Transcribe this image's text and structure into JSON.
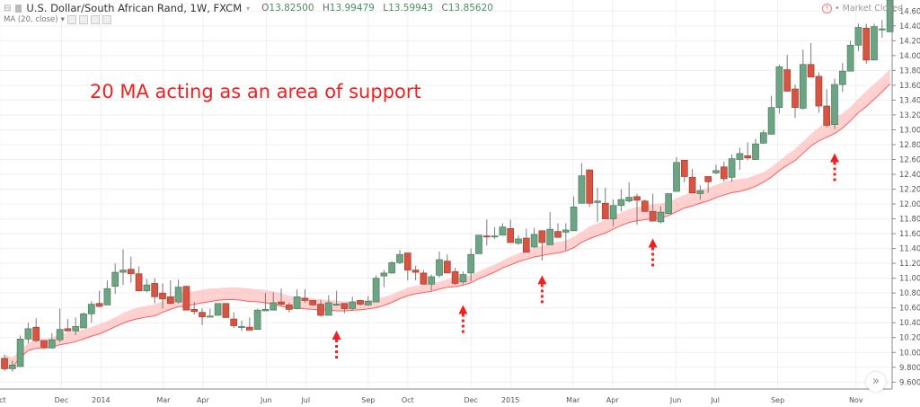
{
  "header": {
    "symbol_title": "U.S. Dollar/South African Rand, 1W, FXCM",
    "ohlc": {
      "o_label": "O",
      "o": "13.82500",
      "h_label": "H",
      "h": "13.99479",
      "l_label": "L",
      "l": "13.59943",
      "c_label": "C",
      "c": "13.85620"
    },
    "indicator": "MA (20, close)",
    "market_status": "Market Closed"
  },
  "annotation_text": "20 MA acting as an area of support",
  "colors": {
    "up": "#6ba583",
    "down": "#d75442",
    "ma_line": "#ff5a5a",
    "ma_band": "#ffb3b3",
    "annotation": "#f02020",
    "grid": "#efefef"
  },
  "chart_data": {
    "type": "candlestick",
    "title": "U.S. Dollar/South African Rand, 1W, FXCM",
    "interval": "1W",
    "indicator": {
      "type": "SMA",
      "period": 20,
      "source": "close"
    },
    "ylim": [
      9.5,
      14.75
    ],
    "y_ticks": [
      "14.60000",
      "14.40000",
      "14.20000",
      "14.00000",
      "13.80000",
      "13.60000",
      "13.40000",
      "13.20000",
      "13.00000",
      "12.80000",
      "12.60000",
      "12.40000",
      "12.20000",
      "12.00000",
      "11.80000",
      "11.60000",
      "11.40000",
      "11.20000",
      "11.00000",
      "10.80000",
      "10.60000",
      "10.40000",
      "10.20000",
      "10.00000",
      "9.80000",
      "9.60000"
    ],
    "x_ticks": [
      {
        "label": "Oct",
        "at": -0.6
      },
      {
        "label": "Dec",
        "at": 7.2
      },
      {
        "label": "2014",
        "at": 12.2
      },
      {
        "label": "Mar",
        "at": 20.1
      },
      {
        "label": "Apr",
        "at": 25.1
      },
      {
        "label": "Jun",
        "at": 33.1
      },
      {
        "label": "Jul",
        "at": 38.1
      },
      {
        "label": "Sep",
        "at": 46
      },
      {
        "label": "Oct",
        "at": 51
      },
      {
        "label": "Dec",
        "at": 59
      },
      {
        "label": "2015",
        "at": 64
      },
      {
        "label": "Mar",
        "at": 71.9
      },
      {
        "label": "Apr",
        "at": 76.9
      },
      {
        "label": "Jun",
        "at": 84.9
      },
      {
        "label": "Jul",
        "at": 89.9
      },
      {
        "label": "Sep",
        "at": 97.8
      },
      {
        "label": "Nov",
        "at": 107.7
      }
    ],
    "grid": true,
    "support_arrows_at_candle": [
      42,
      58,
      68,
      82,
      105
    ],
    "ohlc": [
      [
        9.92,
        9.97,
        9.75,
        9.78
      ],
      [
        9.78,
        9.89,
        9.74,
        9.83
      ],
      [
        9.81,
        10.23,
        9.81,
        10.18
      ],
      [
        10.18,
        10.4,
        10.12,
        10.32
      ],
      [
        10.34,
        10.46,
        10.14,
        10.16
      ],
      [
        10.16,
        10.16,
        10.05,
        10.07
      ],
      [
        10.06,
        10.26,
        10.05,
        10.17
      ],
      [
        10.17,
        10.59,
        10.14,
        10.31
      ],
      [
        10.32,
        10.45,
        10.28,
        10.29
      ],
      [
        10.29,
        10.47,
        10.23,
        10.35
      ],
      [
        10.33,
        10.54,
        10.33,
        10.52
      ],
      [
        10.52,
        10.69,
        10.4,
        10.65
      ],
      [
        10.66,
        10.83,
        10.61,
        10.62
      ],
      [
        10.64,
        10.97,
        10.64,
        10.86
      ],
      [
        10.89,
        11.2,
        10.79,
        11.08
      ],
      [
        11.08,
        11.39,
        10.91,
        11.11
      ],
      [
        11.12,
        11.29,
        10.94,
        11.06
      ],
      [
        11.06,
        11.16,
        10.83,
        10.83
      ],
      [
        10.83,
        10.99,
        10.81,
        10.91
      ],
      [
        10.93,
        11.0,
        10.66,
        10.75
      ],
      [
        10.8,
        10.93,
        10.59,
        10.72
      ],
      [
        10.75,
        10.97,
        10.65,
        10.66
      ],
      [
        10.68,
        10.98,
        10.66,
        10.88
      ],
      [
        10.89,
        10.9,
        10.57,
        10.57
      ],
      [
        10.58,
        10.68,
        10.51,
        10.55
      ],
      [
        10.54,
        10.59,
        10.37,
        10.48
      ],
      [
        10.49,
        10.59,
        10.48,
        10.49
      ],
      [
        10.5,
        10.66,
        10.5,
        10.66
      ],
      [
        10.66,
        10.66,
        10.47,
        10.47
      ],
      [
        10.45,
        10.54,
        10.33,
        10.36
      ],
      [
        10.35,
        10.43,
        10.29,
        10.35
      ],
      [
        10.34,
        10.47,
        10.3,
        10.3
      ],
      [
        10.31,
        10.59,
        10.31,
        10.57
      ],
      [
        10.56,
        10.8,
        10.56,
        10.58
      ],
      [
        10.57,
        10.81,
        10.57,
        10.67
      ],
      [
        10.68,
        10.86,
        10.63,
        10.65
      ],
      [
        10.64,
        10.67,
        10.54,
        10.58
      ],
      [
        10.59,
        10.85,
        10.58,
        10.75
      ],
      [
        10.73,
        10.85,
        10.67,
        10.7
      ],
      [
        10.7,
        10.71,
        10.63,
        10.64
      ],
      [
        10.65,
        10.71,
        10.48,
        10.5
      ],
      [
        10.5,
        10.77,
        10.5,
        10.67
      ],
      [
        10.65,
        10.83,
        10.63,
        10.65
      ],
      [
        10.66,
        10.66,
        10.53,
        10.59
      ],
      [
        10.59,
        10.75,
        10.57,
        10.68
      ],
      [
        10.7,
        10.71,
        10.63,
        10.65
      ],
      [
        10.64,
        10.76,
        10.63,
        10.69
      ],
      [
        10.68,
        11.04,
        10.68,
        11.0
      ],
      [
        11.03,
        11.11,
        10.88,
        11.07
      ],
      [
        11.07,
        11.23,
        11.06,
        11.21
      ],
      [
        11.21,
        11.38,
        11.19,
        11.32
      ],
      [
        11.34,
        11.34,
        10.97,
        11.11
      ],
      [
        11.11,
        11.17,
        10.97,
        11.08
      ],
      [
        11.07,
        11.11,
        10.92,
        10.92
      ],
      [
        10.92,
        11.05,
        10.83,
        11.02
      ],
      [
        11.04,
        11.36,
        11.01,
        11.25
      ],
      [
        11.23,
        11.32,
        11.07,
        11.07
      ],
      [
        11.09,
        11.14,
        10.91,
        10.93
      ],
      [
        10.95,
        11.09,
        10.92,
        11.05
      ],
      [
        11.07,
        11.4,
        10.96,
        11.32
      ],
      [
        11.33,
        11.58,
        11.33,
        11.58
      ],
      [
        11.57,
        11.79,
        11.44,
        11.56
      ],
      [
        11.56,
        11.69,
        11.53,
        11.57
      ],
      [
        11.58,
        11.74,
        11.58,
        11.69
      ],
      [
        11.67,
        11.79,
        11.48,
        11.48
      ],
      [
        11.47,
        11.58,
        11.45,
        11.53
      ],
      [
        11.54,
        11.67,
        11.35,
        11.35
      ],
      [
        11.42,
        11.68,
        11.41,
        11.59
      ],
      [
        11.64,
        11.64,
        11.24,
        11.48
      ],
      [
        11.45,
        11.89,
        11.45,
        11.66
      ],
      [
        11.63,
        11.74,
        11.55,
        11.55
      ],
      [
        11.62,
        11.74,
        11.38,
        11.65
      ],
      [
        11.64,
        12.1,
        11.64,
        11.96
      ],
      [
        12.01,
        12.55,
        12.01,
        12.38
      ],
      [
        12.46,
        12.46,
        11.96,
        12.01
      ],
      [
        12.02,
        12.22,
        11.76,
        12.04
      ],
      [
        12.01,
        12.22,
        11.8,
        11.8
      ],
      [
        11.8,
        12.06,
        11.7,
        11.98
      ],
      [
        11.98,
        12.2,
        11.9,
        12.06
      ],
      [
        12.04,
        12.29,
        12.02,
        12.09
      ],
      [
        12.1,
        12.14,
        11.72,
        12.05
      ],
      [
        12.04,
        12.06,
        11.9,
        11.9
      ],
      [
        11.9,
        12.14,
        11.77,
        11.77
      ],
      [
        11.76,
        11.97,
        11.74,
        11.89
      ],
      [
        11.87,
        12.14,
        11.87,
        12.14
      ],
      [
        12.17,
        12.63,
        12.17,
        12.56
      ],
      [
        12.59,
        12.59,
        12.29,
        12.37
      ],
      [
        12.36,
        12.47,
        12.15,
        12.15
      ],
      [
        12.14,
        12.25,
        12.06,
        12.18
      ],
      [
        12.37,
        12.37,
        12.15,
        12.3
      ],
      [
        12.42,
        12.53,
        12.4,
        12.45
      ],
      [
        12.5,
        12.57,
        12.3,
        12.34
      ],
      [
        12.36,
        12.67,
        12.3,
        12.61
      ],
      [
        12.6,
        12.76,
        12.46,
        12.68
      ],
      [
        12.65,
        12.83,
        12.59,
        12.62
      ],
      [
        12.6,
        12.88,
        12.6,
        12.81
      ],
      [
        12.82,
        13.0,
        12.81,
        12.96
      ],
      [
        12.94,
        13.46,
        12.94,
        13.3
      ],
      [
        13.3,
        13.88,
        13.22,
        13.85
      ],
      [
        13.81,
        14.01,
        13.52,
        13.52
      ],
      [
        13.55,
        13.61,
        13.16,
        13.3
      ],
      [
        13.29,
        14.08,
        13.27,
        13.88
      ],
      [
        13.88,
        14.17,
        13.71,
        13.71
      ],
      [
        13.72,
        13.77,
        13.23,
        13.32
      ],
      [
        13.32,
        13.55,
        13.03,
        13.06
      ],
      [
        13.07,
        13.69,
        13.01,
        13.61
      ],
      [
        13.61,
        13.9,
        13.51,
        13.79
      ],
      [
        13.79,
        14.2,
        13.79,
        14.14
      ],
      [
        14.14,
        14.43,
        14.06,
        14.38
      ],
      [
        14.37,
        14.43,
        13.89,
        13.94
      ],
      [
        13.94,
        14.43,
        13.94,
        14.39
      ],
      [
        14.35,
        14.48,
        14.24,
        14.36
      ],
      [
        14.32,
        14.8,
        14.32,
        14.75
      ]
    ]
  }
}
